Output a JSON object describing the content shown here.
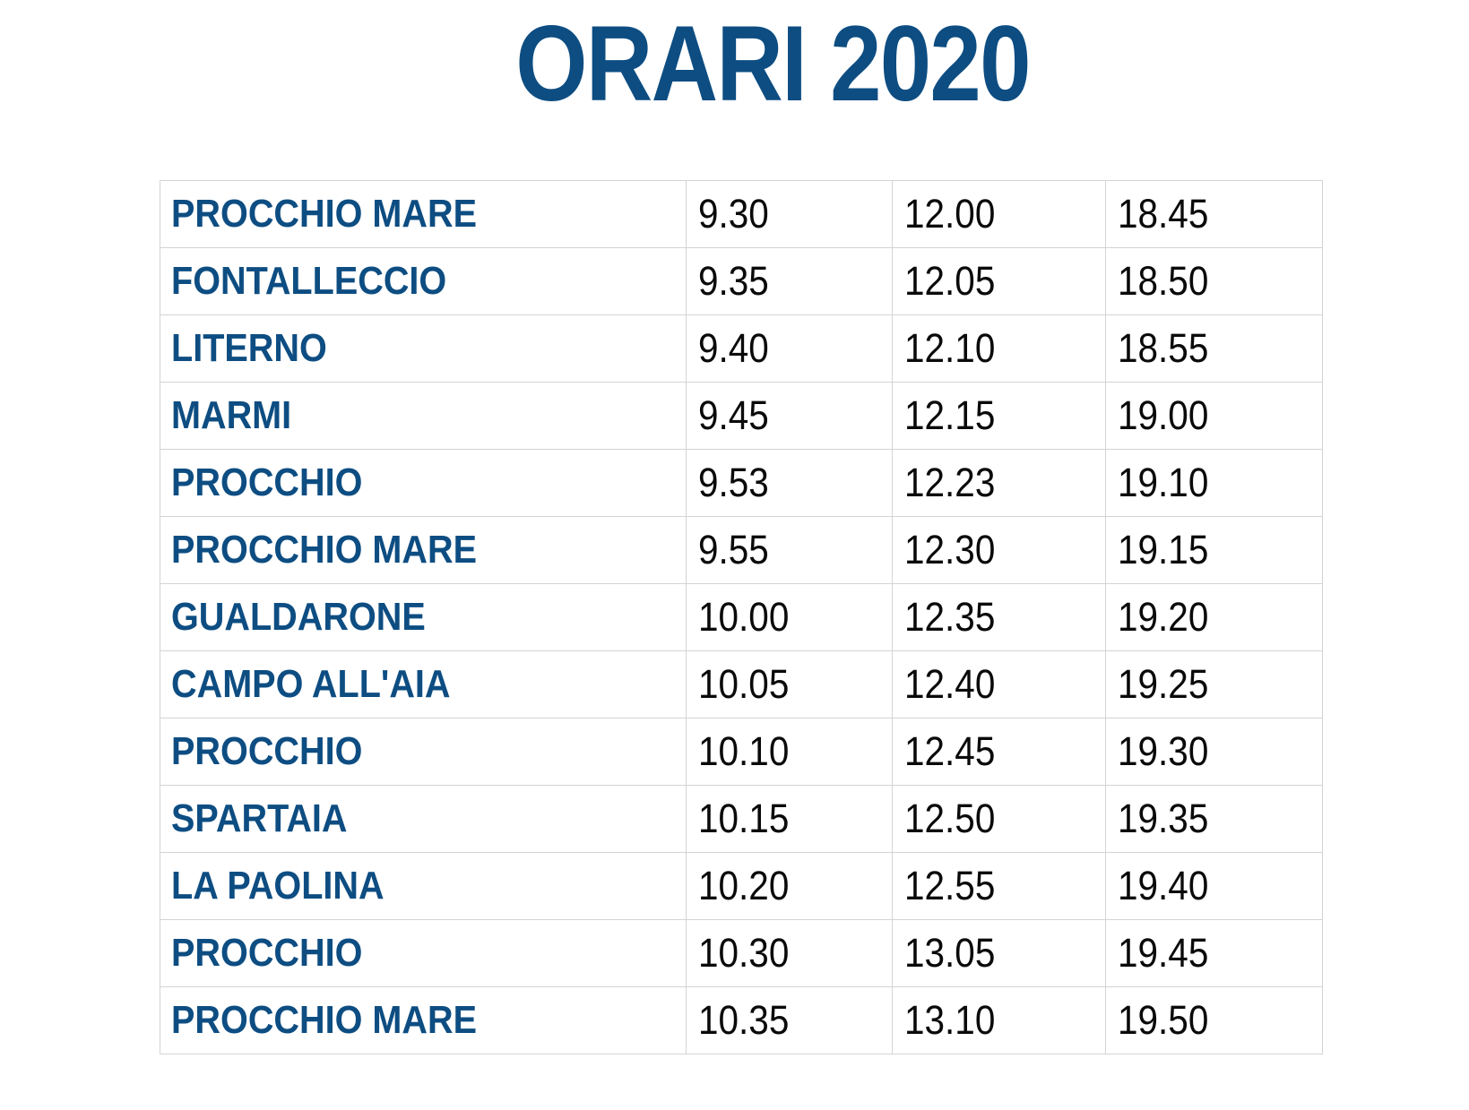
{
  "title": "ORARI 2020",
  "colors": {
    "title": "#0d4d82",
    "station_text": "#0d4d82",
    "time_text": "#0a0a0a",
    "grid_lines": "#d4d4d4",
    "background": "#ffffff"
  },
  "schedule": {
    "rows": [
      {
        "station": "PROCCHIO MARE",
        "times": [
          "9.30",
          "12.00",
          "18.45"
        ]
      },
      {
        "station": "FONTALLECCIO",
        "times": [
          "9.35",
          "12.05",
          "18.50"
        ]
      },
      {
        "station": "LITERNO",
        "times": [
          "9.40",
          "12.10",
          "18.55"
        ]
      },
      {
        "station": "MARMI",
        "times": [
          "9.45",
          "12.15",
          "19.00"
        ]
      },
      {
        "station": "PROCCHIO",
        "times": [
          "9.53",
          "12.23",
          "19.10"
        ]
      },
      {
        "station": "PROCCHIO MARE",
        "times": [
          "9.55",
          "12.30",
          "19.15"
        ]
      },
      {
        "station": "GUALDARONE",
        "times": [
          "10.00",
          "12.35",
          "19.20"
        ]
      },
      {
        "station": "CAMPO ALL'AIA",
        "times": [
          "10.05",
          "12.40",
          "19.25"
        ]
      },
      {
        "station": "PROCCHIO",
        "times": [
          "10.10",
          "12.45",
          "19.30"
        ]
      },
      {
        "station": "SPARTAIA",
        "times": [
          "10.15",
          "12.50",
          "19.35"
        ]
      },
      {
        "station": "LA PAOLINA",
        "times": [
          "10.20",
          "12.55",
          "19.40"
        ]
      },
      {
        "station": "PROCCHIO",
        "times": [
          "10.30",
          "13.05",
          "19.45"
        ]
      },
      {
        "station": "PROCCHIO MARE",
        "times": [
          "10.35",
          "13.10",
          "19.50"
        ]
      }
    ]
  }
}
